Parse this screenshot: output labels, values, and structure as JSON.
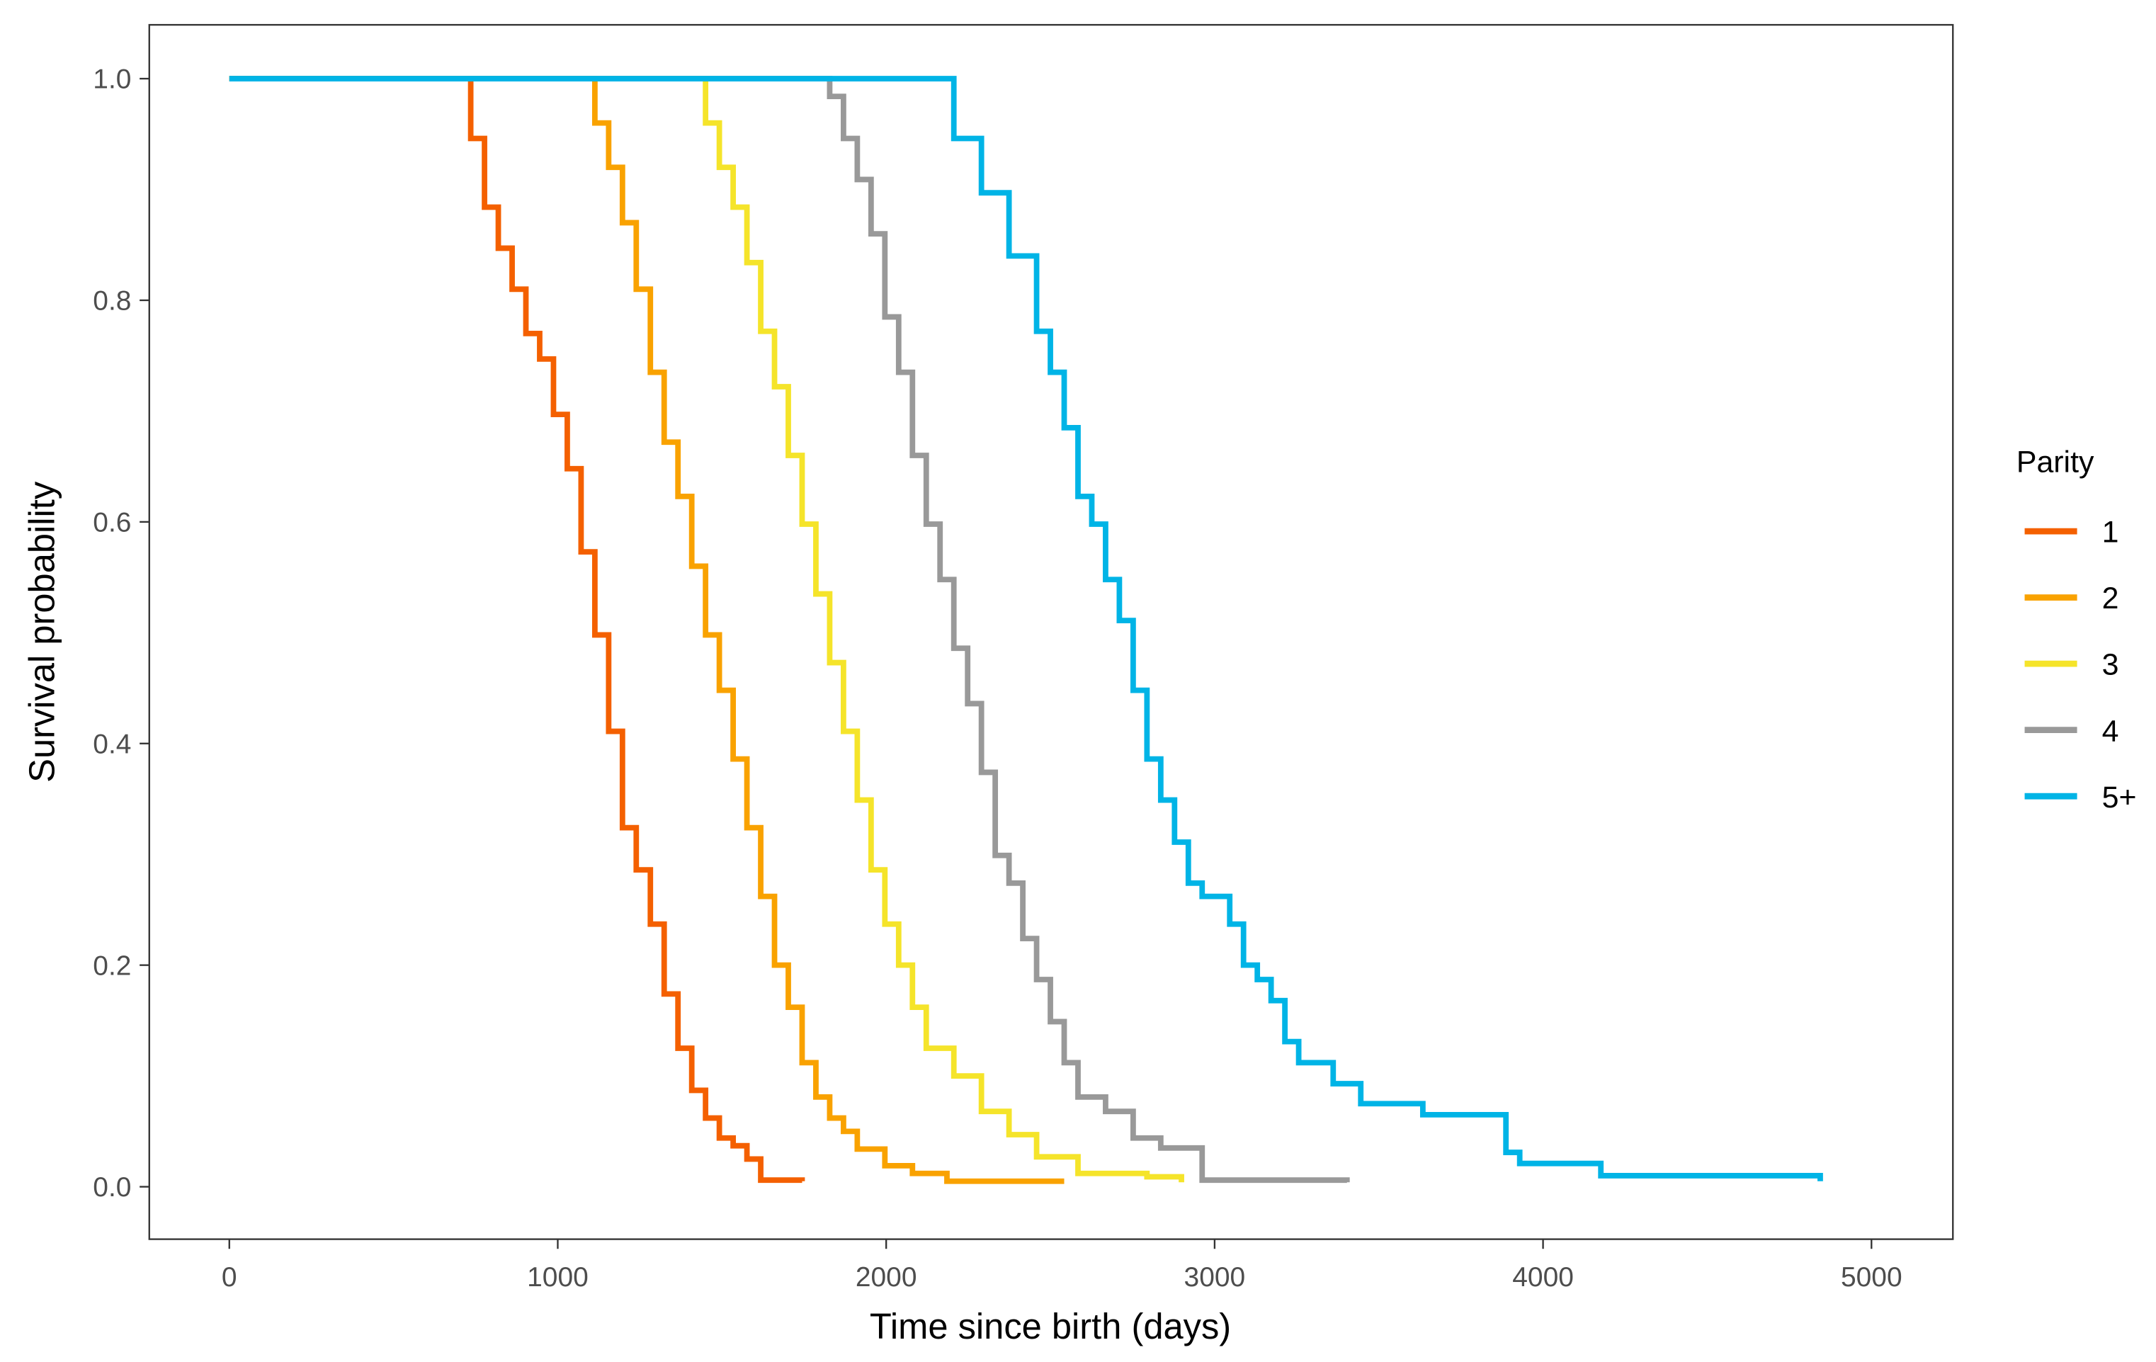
{
  "chart_data": {
    "type": "line",
    "step": true,
    "title": "",
    "xlabel": "Time since birth (days)",
    "ylabel": "Survival probability",
    "xlim": [
      -250,
      5250
    ],
    "ylim": [
      -0.05,
      1.05
    ],
    "xticks": [
      0,
      1000,
      2000,
      3000,
      4000,
      5000
    ],
    "xtick_labels": [
      "0",
      "1000",
      "2000",
      "3000",
      "4000",
      "5000"
    ],
    "yticks": [
      0,
      0.2,
      0.4,
      0.6,
      0.8,
      1.0
    ],
    "ytick_labels": [
      "0.0",
      "0.2",
      "0.4",
      "0.6",
      "0.8",
      "1.0"
    ],
    "grid": false,
    "legend": {
      "title": "Parity",
      "position": "right"
    },
    "series": [
      {
        "name": "1",
        "color": "#F46000",
        "x": [
          0,
          693,
          735,
          777,
          819,
          861,
          903,
          945,
          987,
          1029,
          1071,
          1113,
          1155,
          1197,
          1239,
          1282,
          1324,
          1366,
          1408,
          1450,
          1492,
          1534,
          1576,
          1618,
          1744
        ],
        "y": [
          1.0,
          1.0,
          0.946,
          0.884,
          0.847,
          0.81,
          0.77,
          0.747,
          0.697,
          0.648,
          0.573,
          0.498,
          0.411,
          0.324,
          0.286,
          0.237,
          0.174,
          0.125,
          0.087,
          0.062,
          0.044,
          0.037,
          0.025,
          0.006,
          0.005
        ]
      },
      {
        "name": "2",
        "color": "#F9A200",
        "x": [
          0,
          1050,
          1113,
          1155,
          1197,
          1239,
          1282,
          1324,
          1366,
          1408,
          1450,
          1492,
          1534,
          1576,
          1618,
          1660,
          1702,
          1744,
          1786,
          1828,
          1870,
          1912,
          1996,
          2080,
          2185,
          2542
        ],
        "y": [
          1.0,
          1.0,
          0.96,
          0.92,
          0.87,
          0.81,
          0.735,
          0.672,
          0.623,
          0.56,
          0.498,
          0.448,
          0.386,
          0.324,
          0.262,
          0.2,
          0.162,
          0.112,
          0.081,
          0.062,
          0.05,
          0.034,
          0.019,
          0.012,
          0.005,
          0.005
        ]
      },
      {
        "name": "3",
        "color": "#F5E42A",
        "x": [
          0,
          1408,
          1450,
          1492,
          1534,
          1576,
          1618,
          1660,
          1702,
          1744,
          1786,
          1828,
          1870,
          1912,
          1954,
          1996,
          2038,
          2080,
          2122,
          2206,
          2290,
          2374,
          2458,
          2584,
          2794,
          2899
        ],
        "y": [
          1.0,
          1.0,
          0.96,
          0.92,
          0.884,
          0.834,
          0.772,
          0.722,
          0.66,
          0.598,
          0.535,
          0.473,
          0.411,
          0.349,
          0.286,
          0.237,
          0.2,
          0.162,
          0.125,
          0.1,
          0.068,
          0.047,
          0.027,
          0.012,
          0.009,
          0.004
        ]
      },
      {
        "name": "4",
        "color": "#999999",
        "x": [
          0,
          1790,
          1828,
          1870,
          1912,
          1954,
          1996,
          2038,
          2080,
          2122,
          2164,
          2206,
          2248,
          2290,
          2332,
          2374,
          2416,
          2458,
          2500,
          2542,
          2584,
          2668,
          2752,
          2836,
          2962,
          3403
        ],
        "y": [
          1.0,
          1.0,
          0.984,
          0.946,
          0.909,
          0.86,
          0.785,
          0.735,
          0.66,
          0.598,
          0.548,
          0.486,
          0.436,
          0.374,
          0.299,
          0.274,
          0.224,
          0.187,
          0.149,
          0.112,
          0.081,
          0.068,
          0.044,
          0.035,
          0.006,
          0.004
        ]
      },
      {
        "name": "5+",
        "color": "#00B4E6",
        "x": [
          0,
          2122,
          2206,
          2290,
          2374,
          2458,
          2500,
          2542,
          2584,
          2626,
          2668,
          2710,
          2752,
          2794,
          2836,
          2878,
          2920,
          2962,
          3046,
          3088,
          3130,
          3172,
          3214,
          3256,
          3361,
          3445,
          3634,
          3887,
          3929,
          4176,
          4844
        ],
        "y": [
          1.0,
          1.0,
          0.946,
          0.897,
          0.84,
          0.772,
          0.735,
          0.685,
          0.623,
          0.598,
          0.548,
          0.511,
          0.448,
          0.386,
          0.349,
          0.311,
          0.274,
          0.262,
          0.237,
          0.2,
          0.187,
          0.168,
          0.131,
          0.112,
          0.093,
          0.075,
          0.065,
          0.031,
          0.021,
          0.01,
          0.005
        ]
      }
    ]
  }
}
